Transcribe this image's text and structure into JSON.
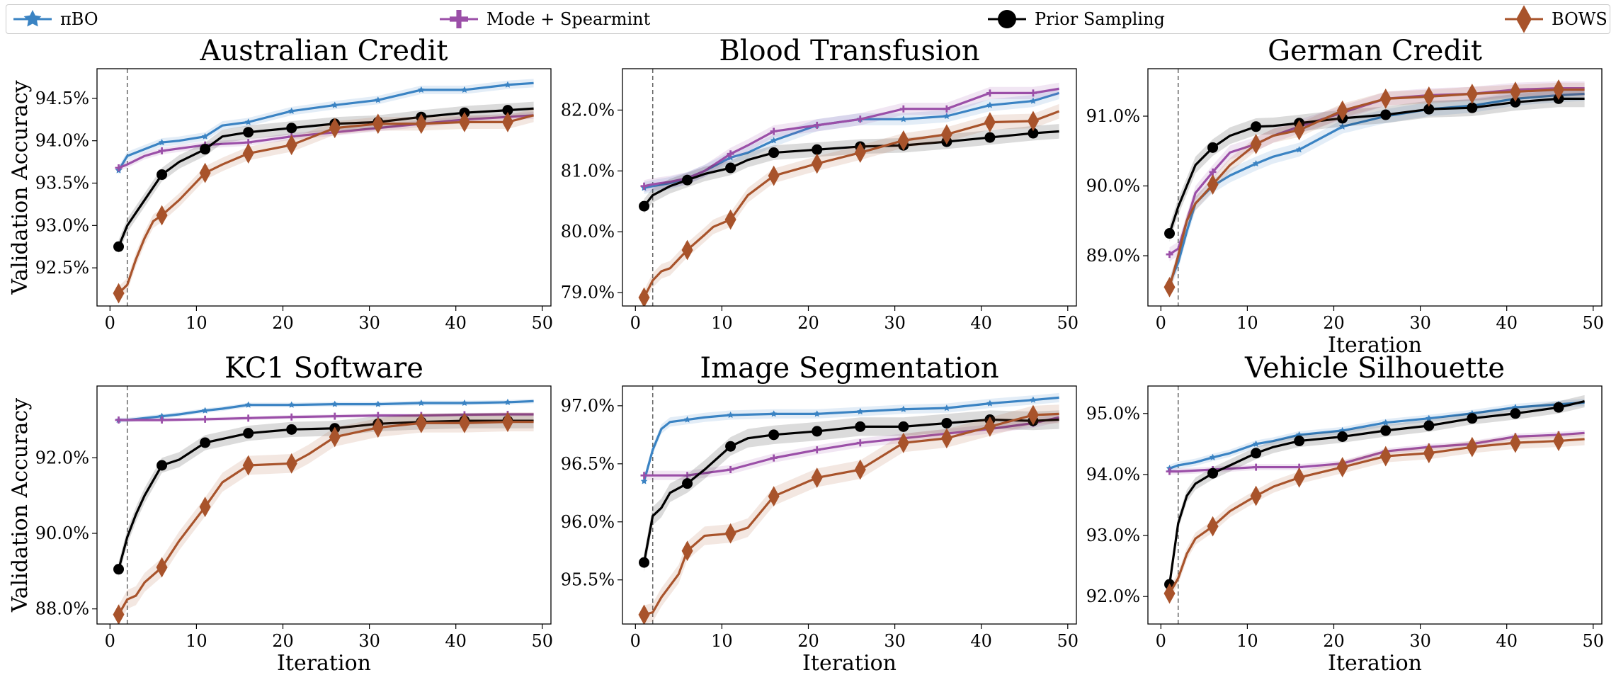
{
  "colors": {
    "pibo": "#3a83c3",
    "spearmint": "#9b4fa8",
    "prior": "#000000",
    "bows": "#a8532b"
  },
  "legend": [
    {
      "key": "pibo",
      "label": "πBO",
      "marker": "star"
    },
    {
      "key": "spearmint",
      "label": "Mode + Spearmint",
      "marker": "plus"
    },
    {
      "key": "prior",
      "label": "Prior Sampling",
      "marker": "circle"
    },
    {
      "key": "bows",
      "label": "BOWS",
      "marker": "diamond"
    }
  ],
  "chart_data": [
    {
      "type": "line",
      "title": "Australian Credit",
      "xlabel": "",
      "ylabel": "Validation Accuracy",
      "xlim": [
        -1.5,
        51
      ],
      "ylim": [
        92.05,
        94.85
      ],
      "xticks": [
        0,
        10,
        20,
        30,
        40,
        50
      ],
      "yticks": [
        92.5,
        93.0,
        93.5,
        94.0,
        94.5
      ],
      "vline": 2,
      "series": [
        {
          "key": "pibo",
          "x": [
            1,
            2,
            4,
            6,
            8,
            11,
            13,
            16,
            21,
            26,
            31,
            36,
            41,
            46,
            49
          ],
          "y": [
            93.65,
            93.82,
            93.9,
            93.98,
            94.0,
            94.05,
            94.18,
            94.22,
            94.35,
            94.42,
            94.48,
            94.6,
            94.6,
            94.66,
            94.68
          ],
          "band": 0.05
        },
        {
          "key": "spearmint",
          "x": [
            1,
            2,
            4,
            6,
            11,
            16,
            21,
            26,
            31,
            36,
            41,
            46,
            49
          ],
          "y": [
            93.68,
            93.72,
            93.82,
            93.88,
            93.95,
            93.98,
            94.05,
            94.1,
            94.15,
            94.2,
            94.25,
            94.28,
            94.3
          ],
          "band": 0.04
        },
        {
          "key": "prior",
          "x": [
            1,
            2,
            4,
            6,
            8,
            11,
            13,
            16,
            21,
            26,
            31,
            36,
            41,
            46,
            49
          ],
          "y": [
            92.75,
            93.0,
            93.3,
            93.6,
            93.75,
            93.9,
            94.05,
            94.1,
            94.15,
            94.2,
            94.22,
            94.28,
            94.33,
            94.36,
            94.38
          ],
          "band": 0.08
        },
        {
          "key": "bows",
          "x": [
            1,
            2,
            3,
            4,
            5,
            6,
            8,
            11,
            13,
            16,
            21,
            26,
            31,
            36,
            41,
            46,
            49
          ],
          "y": [
            92.2,
            92.3,
            92.6,
            92.85,
            93.05,
            93.12,
            93.3,
            93.62,
            93.72,
            93.85,
            93.95,
            94.15,
            94.2,
            94.2,
            94.22,
            94.22,
            94.3
          ],
          "band": 0.08
        }
      ],
      "markers_x": [
        1,
        6,
        11,
        16,
        21,
        26,
        31,
        36,
        41,
        46
      ]
    },
    {
      "type": "line",
      "title": "Blood Transfusion",
      "xlabel": "",
      "ylabel": "",
      "xlim": [
        -1.5,
        51
      ],
      "ylim": [
        78.78,
        82.68
      ],
      "xticks": [
        0,
        10,
        20,
        30,
        40,
        50
      ],
      "yticks": [
        79.0,
        80.0,
        81.0,
        82.0
      ],
      "vline": 2,
      "series": [
        {
          "key": "pibo",
          "x": [
            1,
            2,
            4,
            6,
            8,
            11,
            13,
            16,
            21,
            26,
            31,
            36,
            41,
            46,
            49
          ],
          "y": [
            80.72,
            80.75,
            80.8,
            80.88,
            81.0,
            81.22,
            81.3,
            81.5,
            81.75,
            81.85,
            81.85,
            81.9,
            82.08,
            82.15,
            82.28
          ],
          "band": 0.1
        },
        {
          "key": "spearmint",
          "x": [
            1,
            2,
            4,
            6,
            8,
            11,
            13,
            16,
            21,
            26,
            31,
            36,
            41,
            46,
            49
          ],
          "y": [
            80.75,
            80.78,
            80.82,
            80.88,
            81.0,
            81.28,
            81.42,
            81.65,
            81.75,
            81.85,
            82.02,
            82.02,
            82.28,
            82.28,
            82.35
          ],
          "band": 0.1
        },
        {
          "key": "prior",
          "x": [
            1,
            2,
            4,
            6,
            8,
            11,
            13,
            16,
            21,
            26,
            31,
            36,
            41,
            46,
            49
          ],
          "y": [
            80.42,
            80.6,
            80.75,
            80.85,
            80.95,
            81.05,
            81.18,
            81.3,
            81.35,
            81.4,
            81.42,
            81.48,
            81.55,
            81.62,
            81.65
          ],
          "band": 0.12
        },
        {
          "key": "bows",
          "x": [
            1,
            2,
            3,
            4,
            5,
            6,
            8,
            9,
            11,
            13,
            16,
            21,
            26,
            31,
            36,
            41,
            46,
            49
          ],
          "y": [
            78.92,
            79.2,
            79.35,
            79.4,
            79.55,
            79.7,
            79.95,
            80.08,
            80.2,
            80.6,
            80.92,
            81.12,
            81.3,
            81.5,
            81.6,
            81.8,
            81.82,
            81.98
          ],
          "band": 0.12
        }
      ],
      "markers_x": [
        1,
        6,
        11,
        16,
        21,
        26,
        31,
        36,
        41,
        46
      ]
    },
    {
      "type": "line",
      "title": "German Credit",
      "xlabel": "Iteration",
      "ylabel": "",
      "xlim": [
        -1.5,
        51
      ],
      "ylim": [
        88.28,
        91.68
      ],
      "xticks": [
        0,
        10,
        20,
        30,
        40,
        50
      ],
      "yticks": [
        89.0,
        90.0,
        91.0
      ],
      "vline": 2,
      "series": [
        {
          "key": "pibo",
          "x": [
            1,
            2,
            3,
            4,
            6,
            8,
            11,
            13,
            16,
            21,
            26,
            31,
            36,
            41,
            46,
            49
          ],
          "y": [
            88.6,
            88.9,
            89.35,
            89.75,
            90.0,
            90.15,
            90.32,
            90.42,
            90.52,
            90.85,
            91.0,
            91.1,
            91.15,
            91.25,
            91.3,
            91.32
          ],
          "band": 0.1
        },
        {
          "key": "spearmint",
          "x": [
            1,
            2,
            3,
            4,
            6,
            8,
            11,
            13,
            16,
            21,
            26,
            31,
            36,
            41,
            46,
            49
          ],
          "y": [
            89.02,
            89.1,
            89.5,
            89.9,
            90.2,
            90.48,
            90.6,
            90.72,
            90.85,
            91.05,
            91.25,
            91.3,
            91.32,
            91.38,
            91.4,
            91.4
          ],
          "band": 0.1
        },
        {
          "key": "prior",
          "x": [
            1,
            2,
            3,
            4,
            6,
            8,
            11,
            13,
            16,
            21,
            26,
            31,
            36,
            41,
            46,
            49
          ],
          "y": [
            89.32,
            89.7,
            90.0,
            90.3,
            90.55,
            90.72,
            90.85,
            90.86,
            90.9,
            90.97,
            91.02,
            91.1,
            91.12,
            91.2,
            91.25,
            91.25
          ],
          "band": 0.12
        },
        {
          "key": "bows",
          "x": [
            1,
            2,
            3,
            4,
            6,
            8,
            11,
            13,
            16,
            21,
            26,
            31,
            36,
            41,
            46,
            49
          ],
          "y": [
            88.55,
            89.0,
            89.5,
            89.75,
            90.02,
            90.3,
            90.6,
            90.72,
            90.8,
            91.08,
            91.25,
            91.28,
            91.32,
            91.35,
            91.38,
            91.38
          ],
          "band": 0.1
        }
      ],
      "markers_x": [
        1,
        6,
        11,
        16,
        21,
        26,
        31,
        36,
        41,
        46
      ]
    },
    {
      "type": "line",
      "title": "KC1 Software",
      "xlabel": "Iteration",
      "ylabel": "Validation Accuracy",
      "xlim": [
        -1.5,
        51
      ],
      "ylim": [
        87.6,
        93.9
      ],
      "xticks": [
        0,
        10,
        20,
        30,
        40,
        50
      ],
      "yticks": [
        88.0,
        90.0,
        92.0
      ],
      "vline": 2,
      "series": [
        {
          "key": "pibo",
          "x": [
            1,
            2,
            4,
            6,
            8,
            11,
            13,
            16,
            21,
            26,
            31,
            36,
            41,
            46,
            49
          ],
          "y": [
            93.0,
            93.0,
            93.05,
            93.1,
            93.15,
            93.25,
            93.3,
            93.4,
            93.4,
            93.42,
            93.42,
            93.45,
            93.45,
            93.47,
            93.5
          ],
          "band": 0.06
        },
        {
          "key": "spearmint",
          "x": [
            1,
            2,
            6,
            11,
            16,
            21,
            26,
            31,
            36,
            41,
            46,
            49
          ],
          "y": [
            93.0,
            93.0,
            93.0,
            93.02,
            93.05,
            93.08,
            93.1,
            93.12,
            93.12,
            93.14,
            93.15,
            93.15
          ],
          "band": 0.05
        },
        {
          "key": "prior",
          "x": [
            1,
            2,
            3,
            4,
            6,
            8,
            11,
            13,
            16,
            21,
            26,
            31,
            36,
            41,
            46,
            49
          ],
          "y": [
            89.05,
            89.9,
            90.5,
            91.0,
            91.8,
            91.95,
            92.4,
            92.5,
            92.65,
            92.75,
            92.78,
            92.9,
            92.95,
            92.98,
            92.98,
            92.98
          ],
          "band": 0.2
        },
        {
          "key": "bows",
          "x": [
            1,
            2,
            3,
            4,
            6,
            8,
            11,
            13,
            16,
            21,
            23,
            26,
            31,
            36,
            41,
            46,
            49
          ],
          "y": [
            87.85,
            88.25,
            88.35,
            88.7,
            89.1,
            89.8,
            90.7,
            91.35,
            91.8,
            91.85,
            92.1,
            92.55,
            92.8,
            92.92,
            92.92,
            92.95,
            92.95
          ],
          "band": 0.25
        }
      ],
      "markers_x": [
        1,
        6,
        11,
        16,
        21,
        26,
        31,
        36,
        41,
        46
      ]
    },
    {
      "type": "line",
      "title": "Image Segmentation",
      "xlabel": "Iteration",
      "ylabel": "",
      "xlim": [
        -1.5,
        51
      ],
      "ylim": [
        95.12,
        97.17
      ],
      "xticks": [
        0,
        10,
        20,
        30,
        40,
        50
      ],
      "yticks": [
        95.5,
        96.0,
        96.5,
        97.0
      ],
      "vline": 2,
      "series": [
        {
          "key": "pibo",
          "x": [
            1,
            2,
            3,
            4,
            6,
            8,
            11,
            16,
            21,
            26,
            31,
            36,
            41,
            46,
            49
          ],
          "y": [
            96.35,
            96.62,
            96.8,
            96.86,
            96.88,
            96.9,
            96.92,
            96.93,
            96.93,
            96.95,
            96.97,
            96.98,
            97.02,
            97.05,
            97.07
          ],
          "band": 0.04
        },
        {
          "key": "spearmint",
          "x": [
            1,
            2,
            6,
            11,
            16,
            21,
            26,
            31,
            36,
            41,
            46,
            49
          ],
          "y": [
            96.4,
            96.4,
            96.4,
            96.45,
            96.55,
            96.62,
            96.68,
            96.72,
            96.76,
            96.8,
            96.85,
            96.9
          ],
          "band": 0.04
        },
        {
          "key": "prior",
          "x": [
            1,
            2,
            3,
            4,
            6,
            8,
            11,
            13,
            16,
            21,
            26,
            31,
            36,
            41,
            46,
            49
          ],
          "y": [
            95.65,
            96.05,
            96.12,
            96.25,
            96.33,
            96.45,
            96.65,
            96.72,
            96.75,
            96.78,
            96.82,
            96.82,
            96.85,
            96.88,
            96.87,
            96.88
          ],
          "band": 0.08
        },
        {
          "key": "bows",
          "x": [
            1,
            2,
            3,
            4,
            5,
            6,
            8,
            11,
            13,
            16,
            21,
            26,
            31,
            36,
            41,
            46,
            49
          ],
          "y": [
            95.2,
            95.22,
            95.35,
            95.45,
            95.55,
            95.75,
            95.88,
            95.9,
            95.95,
            96.22,
            96.38,
            96.45,
            96.68,
            96.72,
            96.82,
            96.92,
            96.93
          ],
          "band": 0.08
        }
      ],
      "markers_x": [
        1,
        6,
        11,
        16,
        21,
        26,
        31,
        36,
        41,
        46
      ]
    },
    {
      "type": "line",
      "title": "Vehicle Silhouette",
      "xlabel": "Iteration",
      "ylabel": "",
      "xlim": [
        -1.5,
        51
      ],
      "ylim": [
        91.55,
        95.45
      ],
      "xticks": [
        0,
        10,
        20,
        30,
        40,
        50
      ],
      "yticks": [
        92.0,
        93.0,
        94.0,
        95.0
      ],
      "vline": 2,
      "series": [
        {
          "key": "pibo",
          "x": [
            1,
            2,
            4,
            6,
            8,
            11,
            13,
            16,
            21,
            26,
            31,
            36,
            41,
            46,
            49
          ],
          "y": [
            94.1,
            94.15,
            94.2,
            94.28,
            94.35,
            94.5,
            94.55,
            94.65,
            94.72,
            94.85,
            94.92,
            95.0,
            95.1,
            95.15,
            95.18
          ],
          "band": 0.06
        },
        {
          "key": "spearmint",
          "x": [
            1,
            2,
            6,
            11,
            16,
            21,
            26,
            31,
            36,
            41,
            46,
            49
          ],
          "y": [
            94.05,
            94.05,
            94.08,
            94.12,
            94.12,
            94.18,
            94.38,
            94.45,
            94.5,
            94.62,
            94.65,
            94.68
          ],
          "band": 0.05
        },
        {
          "key": "prior",
          "x": [
            1,
            2,
            3,
            4,
            6,
            8,
            11,
            13,
            16,
            21,
            26,
            31,
            36,
            41,
            46,
            49
          ],
          "y": [
            92.2,
            93.2,
            93.65,
            93.85,
            94.02,
            94.15,
            94.35,
            94.45,
            94.55,
            94.62,
            94.72,
            94.8,
            94.92,
            95.0,
            95.1,
            95.2
          ],
          "band": 0.1
        },
        {
          "key": "bows",
          "x": [
            1,
            2,
            3,
            4,
            6,
            8,
            11,
            13,
            16,
            21,
            26,
            31,
            36,
            41,
            46,
            49
          ],
          "y": [
            92.05,
            92.3,
            92.7,
            92.95,
            93.15,
            93.4,
            93.65,
            93.8,
            93.95,
            94.12,
            94.3,
            94.35,
            94.45,
            94.52,
            94.55,
            94.58
          ],
          "band": 0.1
        }
      ],
      "markers_x": [
        1,
        6,
        11,
        16,
        21,
        26,
        31,
        36,
        41,
        46
      ]
    }
  ]
}
